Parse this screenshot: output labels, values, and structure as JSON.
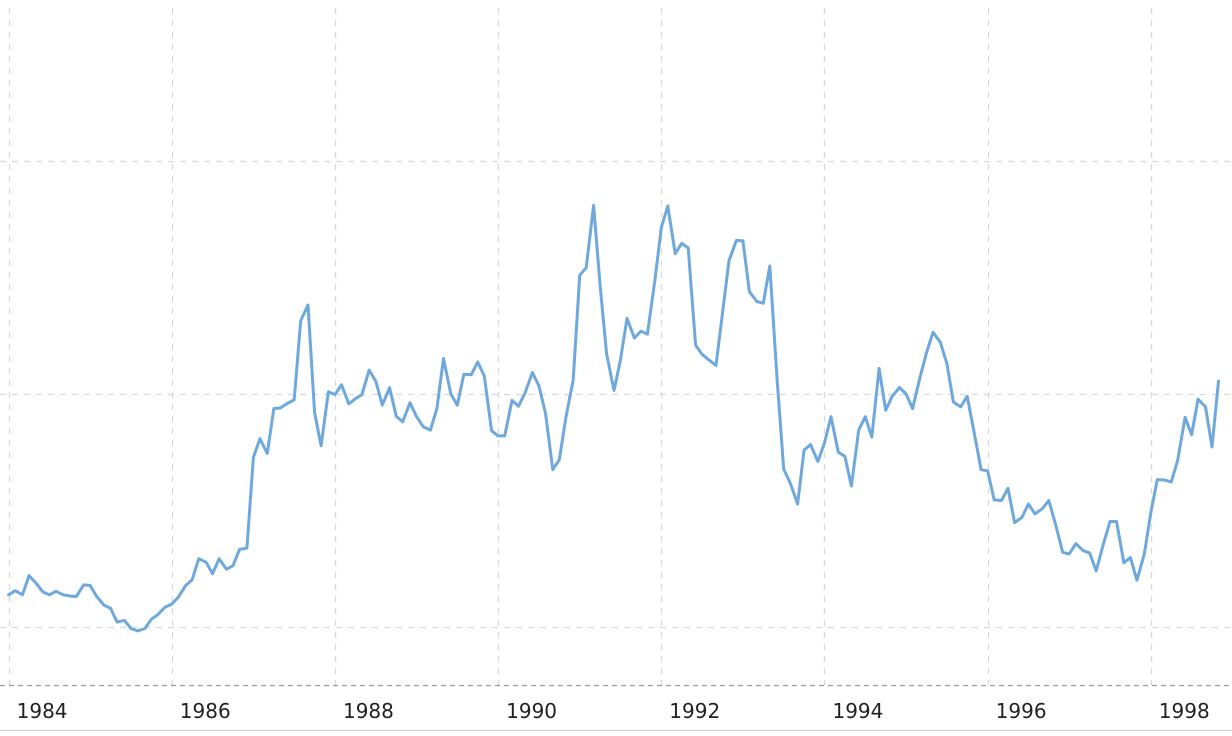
{
  "chart_data": {
    "type": "line",
    "title": "",
    "xlabel": "",
    "ylabel": "",
    "xlim": [
      1983.98,
      1998.75
    ],
    "ylim": [
      0,
      1
    ],
    "grid": true,
    "x_ticks": [
      {
        "value": 1984,
        "label": "1984"
      },
      {
        "value": 1986,
        "label": "1986"
      },
      {
        "value": 1988,
        "label": "1988"
      },
      {
        "value": 1990,
        "label": "1990"
      },
      {
        "value": 1992,
        "label": "1992"
      },
      {
        "value": 1994,
        "label": "1994"
      },
      {
        "value": 1996,
        "label": "1996"
      },
      {
        "value": 1998,
        "label": "1998"
      }
    ],
    "y_gridlines": [
      0.0,
      0.1,
      0.5,
      0.9
    ],
    "series": [
      {
        "color": "#6fa8dc",
        "points": [
          [
            1984.0,
            0.155
          ],
          [
            1984.08,
            0.162
          ],
          [
            1984.17,
            0.155
          ],
          [
            1984.25,
            0.188
          ],
          [
            1984.33,
            0.176
          ],
          [
            1984.42,
            0.16
          ],
          [
            1984.5,
            0.155
          ],
          [
            1984.58,
            0.161
          ],
          [
            1984.67,
            0.155
          ],
          [
            1984.75,
            0.153
          ],
          [
            1984.83,
            0.152
          ],
          [
            1984.92,
            0.172
          ],
          [
            1985.0,
            0.171
          ],
          [
            1985.08,
            0.152
          ],
          [
            1985.17,
            0.137
          ],
          [
            1985.25,
            0.132
          ],
          [
            1985.33,
            0.108
          ],
          [
            1985.42,
            0.111
          ],
          [
            1985.5,
            0.097
          ],
          [
            1985.58,
            0.093
          ],
          [
            1985.67,
            0.097
          ],
          [
            1985.75,
            0.113
          ],
          [
            1985.83,
            0.121
          ],
          [
            1985.92,
            0.134
          ],
          [
            1986.0,
            0.139
          ],
          [
            1986.08,
            0.151
          ],
          [
            1986.17,
            0.171
          ],
          [
            1986.25,
            0.181
          ],
          [
            1986.33,
            0.217
          ],
          [
            1986.42,
            0.211
          ],
          [
            1986.5,
            0.191
          ],
          [
            1986.58,
            0.217
          ],
          [
            1986.67,
            0.199
          ],
          [
            1986.75,
            0.205
          ],
          [
            1986.83,
            0.233
          ],
          [
            1986.92,
            0.235
          ],
          [
            1987.0,
            0.391
          ],
          [
            1987.08,
            0.423
          ],
          [
            1987.17,
            0.398
          ],
          [
            1987.25,
            0.475
          ],
          [
            1987.33,
            0.476
          ],
          [
            1987.42,
            0.484
          ],
          [
            1987.5,
            0.49
          ],
          [
            1987.58,
            0.626
          ],
          [
            1987.67,
            0.653
          ],
          [
            1987.75,
            0.468
          ],
          [
            1987.83,
            0.411
          ],
          [
            1987.92,
            0.504
          ],
          [
            1988.0,
            0.499
          ],
          [
            1988.08,
            0.516
          ],
          [
            1988.17,
            0.483
          ],
          [
            1988.25,
            0.492
          ],
          [
            1988.33,
            0.499
          ],
          [
            1988.42,
            0.541
          ],
          [
            1988.5,
            0.522
          ],
          [
            1988.58,
            0.481
          ],
          [
            1988.67,
            0.511
          ],
          [
            1988.75,
            0.462
          ],
          [
            1988.83,
            0.452
          ],
          [
            1988.92,
            0.485
          ],
          [
            1989.0,
            0.461
          ],
          [
            1989.08,
            0.444
          ],
          [
            1989.17,
            0.438
          ],
          [
            1989.25,
            0.475
          ],
          [
            1989.33,
            0.561
          ],
          [
            1989.42,
            0.5
          ],
          [
            1989.5,
            0.481
          ],
          [
            1989.58,
            0.534
          ],
          [
            1989.67,
            0.533
          ],
          [
            1989.75,
            0.555
          ],
          [
            1989.83,
            0.531
          ],
          [
            1989.92,
            0.437
          ],
          [
            1990.0,
            0.428
          ],
          [
            1990.08,
            0.428
          ],
          [
            1990.17,
            0.489
          ],
          [
            1990.25,
            0.479
          ],
          [
            1990.33,
            0.502
          ],
          [
            1990.42,
            0.537
          ],
          [
            1990.5,
            0.514
          ],
          [
            1990.58,
            0.467
          ],
          [
            1990.67,
            0.37
          ],
          [
            1990.75,
            0.387
          ],
          [
            1990.83,
            0.46
          ],
          [
            1990.92,
            0.524
          ],
          [
            1991.0,
            0.704
          ],
          [
            1991.08,
            0.717
          ],
          [
            1991.17,
            0.824
          ],
          [
            1991.25,
            0.687
          ],
          [
            1991.33,
            0.569
          ],
          [
            1991.42,
            0.506
          ],
          [
            1991.5,
            0.559
          ],
          [
            1991.58,
            0.63
          ],
          [
            1991.67,
            0.596
          ],
          [
            1991.75,
            0.608
          ],
          [
            1991.83,
            0.603
          ],
          [
            1991.92,
            0.694
          ],
          [
            1992.0,
            0.786
          ],
          [
            1992.08,
            0.823
          ],
          [
            1992.17,
            0.741
          ],
          [
            1992.25,
            0.759
          ],
          [
            1992.33,
            0.751
          ],
          [
            1992.42,
            0.584
          ],
          [
            1992.5,
            0.568
          ],
          [
            1992.58,
            0.559
          ],
          [
            1992.67,
            0.549
          ],
          [
            1992.75,
            0.639
          ],
          [
            1992.83,
            0.729
          ],
          [
            1992.92,
            0.764
          ],
          [
            1993.0,
            0.763
          ],
          [
            1993.08,
            0.676
          ],
          [
            1993.17,
            0.659
          ],
          [
            1993.25,
            0.656
          ],
          [
            1993.33,
            0.72
          ],
          [
            1993.42,
            0.523
          ],
          [
            1993.5,
            0.371
          ],
          [
            1993.58,
            0.347
          ],
          [
            1993.67,
            0.311
          ],
          [
            1993.75,
            0.404
          ],
          [
            1993.83,
            0.413
          ],
          [
            1993.92,
            0.384
          ],
          [
            1994.0,
            0.416
          ],
          [
            1994.08,
            0.461
          ],
          [
            1994.17,
            0.4
          ],
          [
            1994.25,
            0.393
          ],
          [
            1994.33,
            0.342
          ],
          [
            1994.42,
            0.438
          ],
          [
            1994.5,
            0.461
          ],
          [
            1994.58,
            0.426
          ],
          [
            1994.67,
            0.544
          ],
          [
            1994.75,
            0.472
          ],
          [
            1994.83,
            0.496
          ],
          [
            1994.92,
            0.511
          ],
          [
            1995.0,
            0.5
          ],
          [
            1995.08,
            0.475
          ],
          [
            1995.17,
            0.528
          ],
          [
            1995.25,
            0.571
          ],
          [
            1995.33,
            0.606
          ],
          [
            1995.42,
            0.589
          ],
          [
            1995.5,
            0.552
          ],
          [
            1995.58,
            0.486
          ],
          [
            1995.67,
            0.478
          ],
          [
            1995.75,
            0.496
          ],
          [
            1995.83,
            0.437
          ],
          [
            1995.92,
            0.37
          ],
          [
            1996.0,
            0.368
          ],
          [
            1996.08,
            0.318
          ],
          [
            1996.17,
            0.317
          ],
          [
            1996.25,
            0.338
          ],
          [
            1996.33,
            0.279
          ],
          [
            1996.42,
            0.288
          ],
          [
            1996.5,
            0.311
          ],
          [
            1996.58,
            0.294
          ],
          [
            1996.67,
            0.303
          ],
          [
            1996.75,
            0.317
          ],
          [
            1996.83,
            0.277
          ],
          [
            1996.92,
            0.228
          ],
          [
            1997.0,
            0.225
          ],
          [
            1997.08,
            0.243
          ],
          [
            1997.17,
            0.231
          ],
          [
            1997.25,
            0.227
          ],
          [
            1997.33,
            0.196
          ],
          [
            1997.42,
            0.243
          ],
          [
            1997.5,
            0.281
          ],
          [
            1997.58,
            0.281
          ],
          [
            1997.67,
            0.21
          ],
          [
            1997.75,
            0.219
          ],
          [
            1997.83,
            0.18
          ],
          [
            1997.92,
            0.225
          ],
          [
            1998.0,
            0.296
          ],
          [
            1998.08,
            0.353
          ],
          [
            1998.17,
            0.352
          ],
          [
            1998.25,
            0.349
          ],
          [
            1998.33,
            0.386
          ],
          [
            1998.42,
            0.46
          ],
          [
            1998.5,
            0.43
          ],
          [
            1998.58,
            0.491
          ],
          [
            1998.67,
            0.478
          ],
          [
            1998.75,
            0.409
          ],
          [
            1998.83,
            0.522
          ]
        ]
      }
    ]
  }
}
